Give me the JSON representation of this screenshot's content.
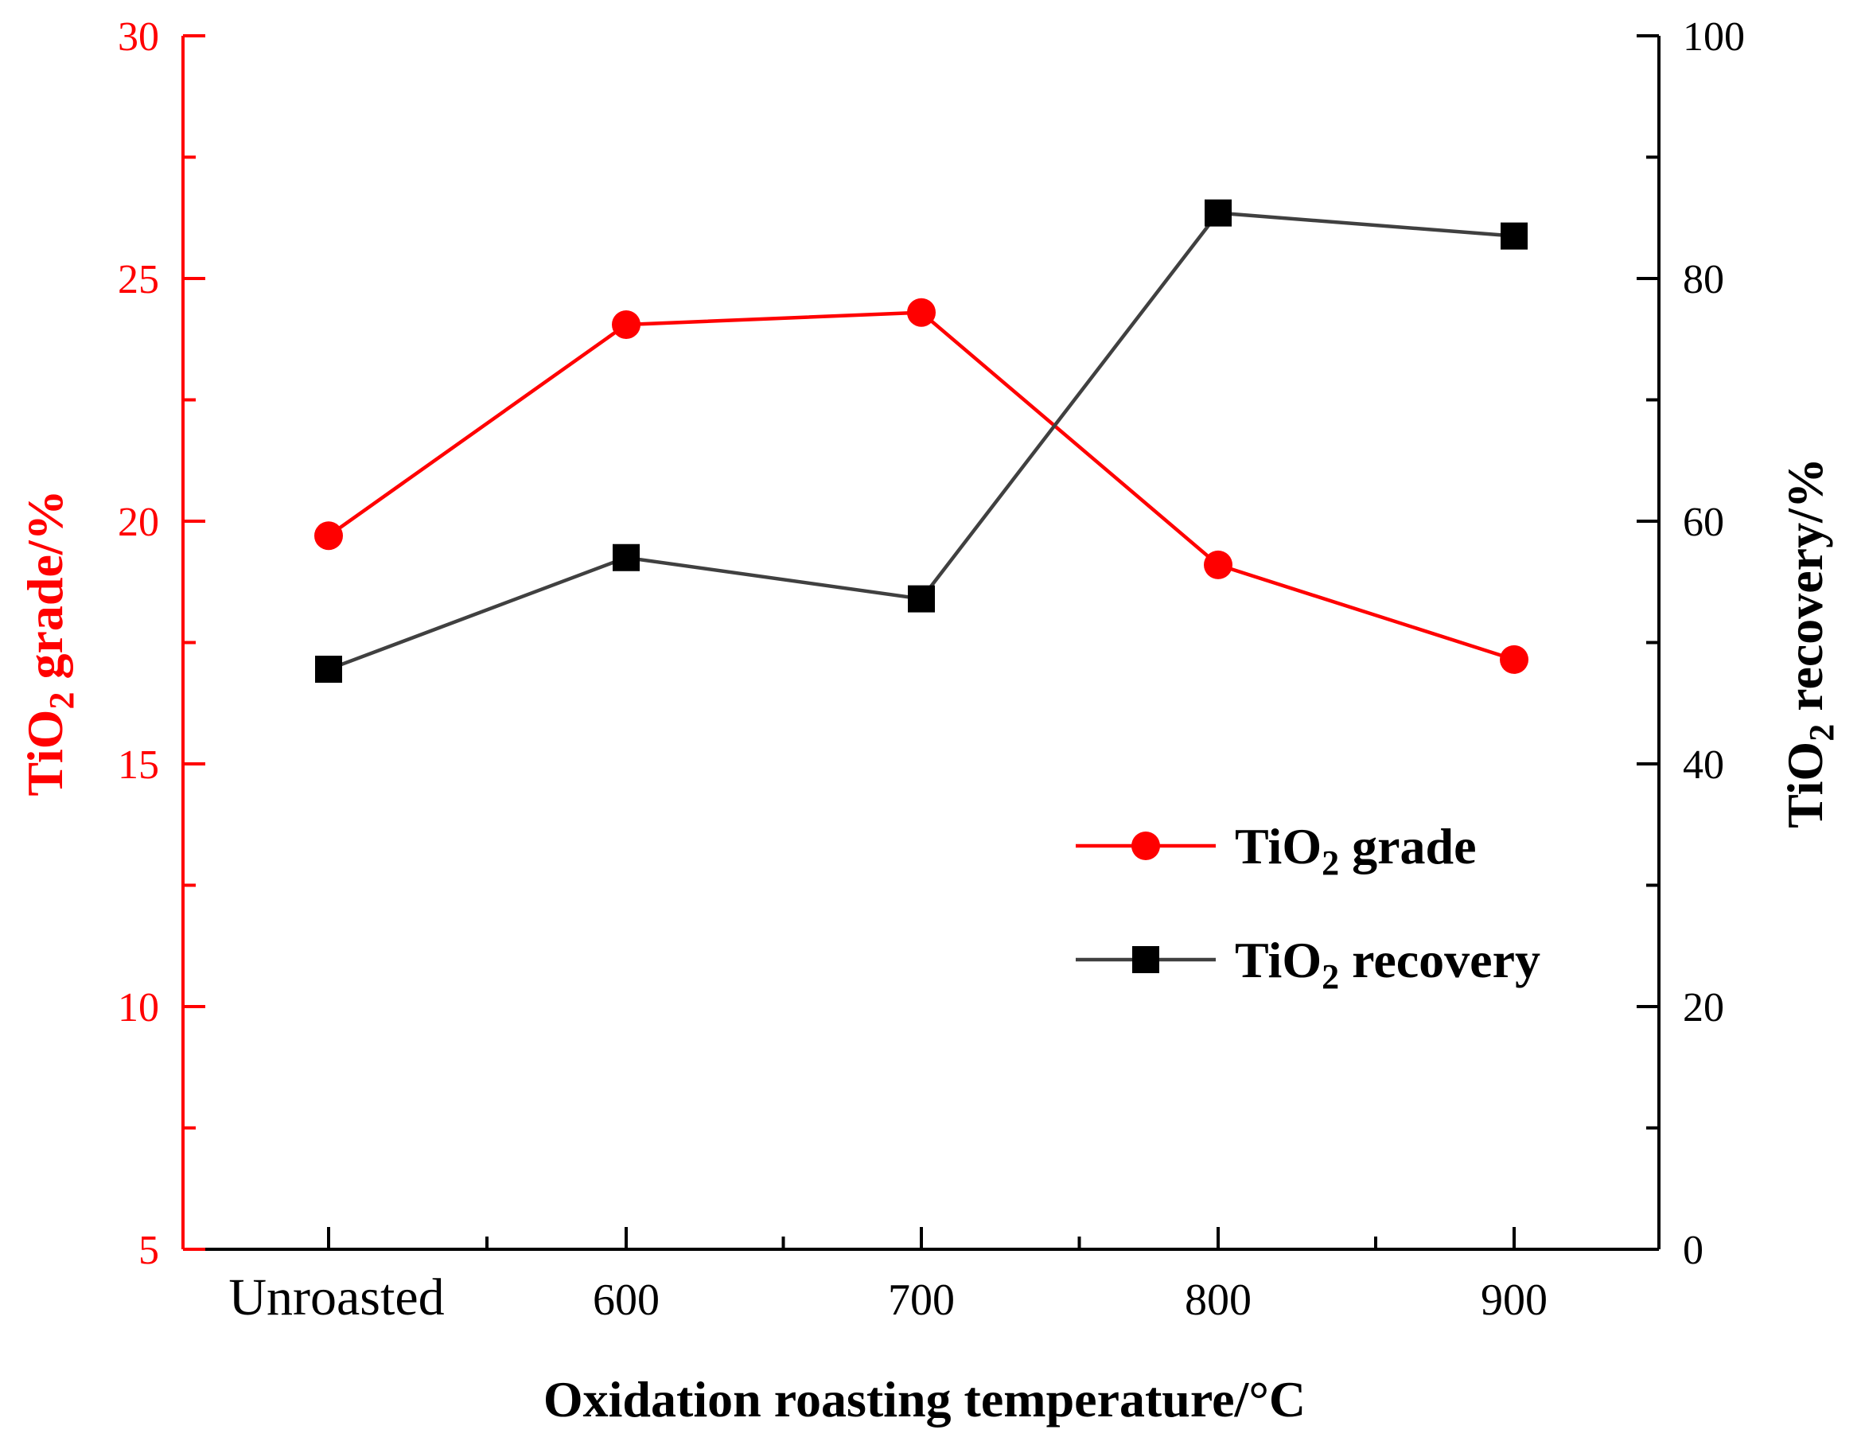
{
  "chart_data": {
    "type": "line",
    "title": "",
    "xlabel": "Oxidation roasting temperature/°C",
    "categories": [
      "Unroasted",
      "600",
      "700",
      "800",
      "900"
    ],
    "y_left": {
      "label_main": "TiO",
      "label_sub": "2",
      "label_rest": " grade/%",
      "ylim": [
        5,
        30
      ],
      "ticks": [
        "5",
        "10",
        "15",
        "20",
        "25",
        "30"
      ],
      "color": "#ff0000"
    },
    "y_right": {
      "label_main": "TiO",
      "label_sub": "2",
      "label_rest": " recovery/%",
      "ylim": [
        0,
        100
      ],
      "ticks": [
        "0",
        "20",
        "40",
        "60",
        "80",
        "100"
      ],
      "color": "#000000"
    },
    "series": [
      {
        "name": "TiO2 grade",
        "legend_main": "TiO",
        "legend_sub": "2",
        "legend_rest": " grade",
        "axis": "left",
        "marker": "circle",
        "color": "#ff0000",
        "values": [
          19.7,
          24.05,
          24.3,
          19.1,
          17.15
        ]
      },
      {
        "name": "TiO2 recovery",
        "legend_main": "TiO",
        "legend_sub": "2",
        "legend_rest": " recovery",
        "axis": "right",
        "marker": "square",
        "color": "#404040",
        "marker_color": "#000000",
        "values": [
          47.8,
          57.0,
          53.6,
          85.4,
          83.5
        ]
      }
    ],
    "legend_position": "center-right",
    "grid": false
  }
}
